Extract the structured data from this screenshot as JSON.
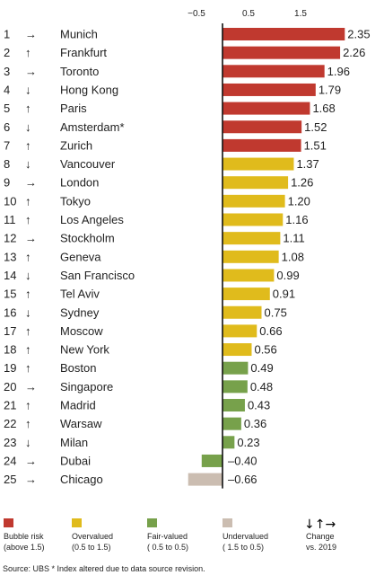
{
  "chart_data": {
    "type": "bar",
    "orientation": "horizontal",
    "x_ticks": [
      -0.5,
      0.5,
      1.5
    ],
    "xlim": [
      -0.85,
      2.45
    ],
    "grid": false,
    "legend_placement": "bottom",
    "rows": [
      {
        "rank": "1",
        "change": "right",
        "city": "Munich",
        "value": 2.35,
        "label": "2.35",
        "category": "bubble"
      },
      {
        "rank": "2",
        "change": "up",
        "city": "Frankfurt",
        "value": 2.26,
        "label": "2.26",
        "category": "bubble"
      },
      {
        "rank": "3",
        "change": "right",
        "city": "Toronto",
        "value": 1.96,
        "label": "1.96",
        "category": "bubble"
      },
      {
        "rank": "4",
        "change": "down",
        "city": "Hong Kong",
        "value": 1.79,
        "label": "1.79",
        "category": "bubble"
      },
      {
        "rank": "5",
        "change": "up",
        "city": "Paris",
        "value": 1.68,
        "label": "1.68",
        "category": "bubble"
      },
      {
        "rank": "6",
        "change": "down",
        "city": "Amsterdam*",
        "value": 1.52,
        "label": "1.52",
        "category": "bubble"
      },
      {
        "rank": "7",
        "change": "up",
        "city": "Zurich",
        "value": 1.51,
        "label": "1.51",
        "category": "bubble"
      },
      {
        "rank": "8",
        "change": "down",
        "city": "Vancouver",
        "value": 1.37,
        "label": "1.37",
        "category": "overvalued"
      },
      {
        "rank": "9",
        "change": "right",
        "city": "London",
        "value": 1.26,
        "label": "1.26",
        "category": "overvalued"
      },
      {
        "rank": "10",
        "change": "up",
        "city": "Tokyo",
        "value": 1.2,
        "label": "1.20",
        "category": "overvalued"
      },
      {
        "rank": "11",
        "change": "up",
        "city": "Los Angeles",
        "value": 1.16,
        "label": "1.16",
        "category": "overvalued"
      },
      {
        "rank": "12",
        "change": "right",
        "city": "Stockholm",
        "value": 1.11,
        "label": "1.11",
        "category": "overvalued"
      },
      {
        "rank": "13",
        "change": "up",
        "city": "Geneva",
        "value": 1.08,
        "label": "1.08",
        "category": "overvalued"
      },
      {
        "rank": "14",
        "change": "down",
        "city": "San Francisco",
        "value": 0.99,
        "label": "0.99",
        "category": "overvalued"
      },
      {
        "rank": "15",
        "change": "up",
        "city": "Tel Aviv",
        "value": 0.91,
        "label": "0.91",
        "category": "overvalued"
      },
      {
        "rank": "16",
        "change": "down",
        "city": "Sydney",
        "value": 0.75,
        "label": "0.75",
        "category": "overvalued"
      },
      {
        "rank": "17",
        "change": "up",
        "city": "Moscow",
        "value": 0.66,
        "label": "0.66",
        "category": "overvalued"
      },
      {
        "rank": "18",
        "change": "up",
        "city": "New York",
        "value": 0.56,
        "label": "0.56",
        "category": "overvalued"
      },
      {
        "rank": "19",
        "change": "up",
        "city": "Boston",
        "value": 0.49,
        "label": "0.49",
        "category": "fair"
      },
      {
        "rank": "20",
        "change": "right",
        "city": "Singapore",
        "value": 0.48,
        "label": "0.48",
        "category": "fair"
      },
      {
        "rank": "21",
        "change": "up",
        "city": "Madrid",
        "value": 0.43,
        "label": "0.43",
        "category": "fair"
      },
      {
        "rank": "22",
        "change": "up",
        "city": "Warsaw",
        "value": 0.36,
        "label": "0.36",
        "category": "fair"
      },
      {
        "rank": "23",
        "change": "down",
        "city": "Milan",
        "value": 0.23,
        "label": "0.23",
        "category": "fair"
      },
      {
        "rank": "24",
        "change": "right",
        "city": "Dubai",
        "value": -0.4,
        "label": "–0.40",
        "category": "fair"
      },
      {
        "rank": "25",
        "change": "right",
        "city": "Chicago",
        "value": -0.66,
        "label": "–0.66",
        "category": "undervalued"
      }
    ],
    "legend": [
      {
        "key": "bubble",
        "line1": "Bubble risk",
        "line2": "(above 1.5)"
      },
      {
        "key": "overvalued",
        "line1": "Overvalued",
        "line2": "(0.5 to 1.5)"
      },
      {
        "key": "fair",
        "line1": "Fair-valued",
        "line2": "( 0.5 to 0.5)"
      },
      {
        "key": "undervalued",
        "line1": "Undervalued",
        "line2": "( 1.5 to   0.5)"
      }
    ],
    "change_legend": {
      "symbols": "↓↑→",
      "line1": "Change",
      "line2": "vs. 2019"
    },
    "colors": {
      "bubble": "#c0392f",
      "overvalued": "#e0bb1c",
      "fair": "#77a14b",
      "undervalued": "#cbbdb1",
      "axis": "#111111"
    },
    "arrow_glyphs": {
      "up": "↑",
      "down": "↓",
      "right": "→"
    },
    "source": "Source: UBS  * Index altered due to data source revision."
  }
}
